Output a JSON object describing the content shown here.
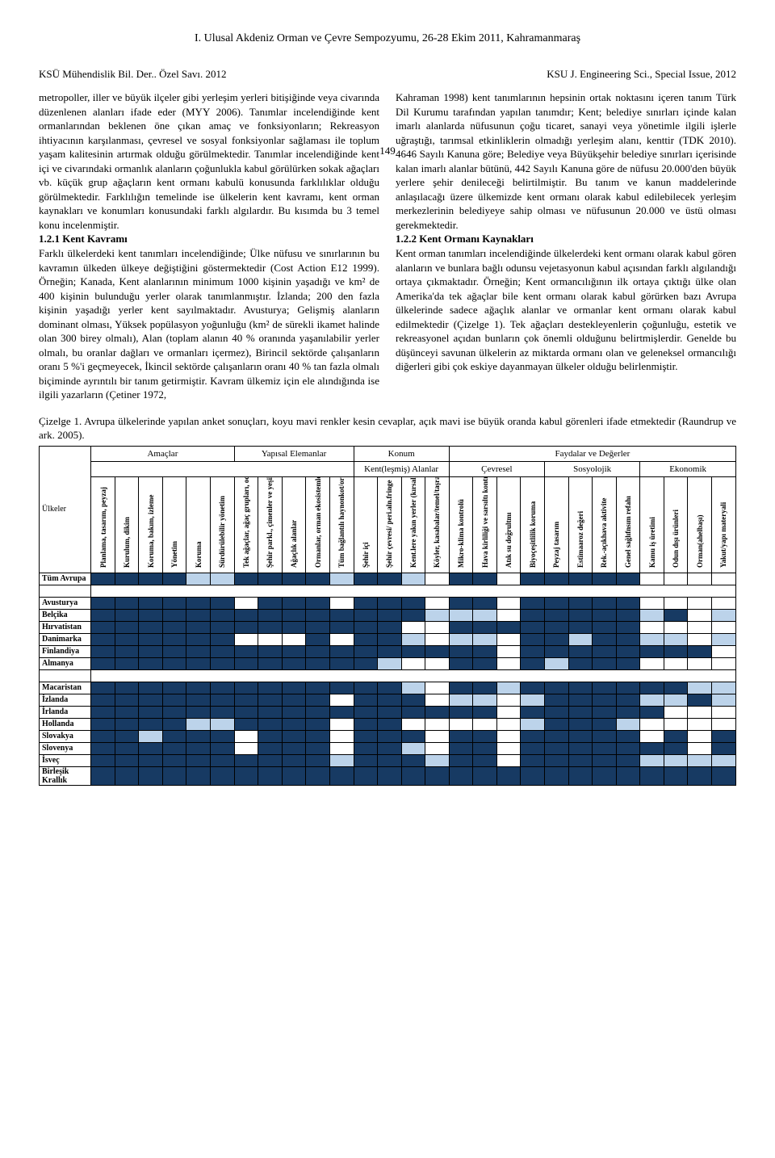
{
  "page_title": "I.  Ulusal Akdeniz Orman ve Çevre Sempozyumu, 26-28 Ekim 2011, Kahramanmaraş",
  "header": {
    "left": "KSÜ Mühendislik Bil. Der.. Özel Savı. 2012",
    "page_number": "149",
    "right": "KSU J. Engineering Sci., Special Issue, 2012"
  },
  "body": {
    "col1_p1": "metropoller, iller ve büyük ilçeler gibi yerleşim yerleri bitişiğinde veya civarında düzenlenen alanları ifade eder (MYY 2006). Tanımlar incelendiğinde kent ormanlarından beklenen öne çıkan amaç ve fonksiyonların; Rekreasyon ihtiyacının karşılanması, çevresel ve sosyal fonksiyonlar sağlaması ile toplum yaşam kalitesinin artırmak olduğu görülmektedir. Tanımlar incelendiğinde kent içi ve civarındaki ormanlık alanların çoğunlukla kabul görülürken sokak ağaçları vb. küçük grup ağaçların kent ormanı kabulü konusunda farklılıklar olduğu görülmektedir. Farklılığın temelinde ise ülkelerin kent kavramı, kent orman kaynakları ve konumları konusundaki farklı algılardır. Bu kısımda bu 3 temel konu incelenmiştir.",
    "sec1_head": "1.2.1 Kent Kavramı",
    "col1_p2": "Farklı ülkelerdeki kent tanımları incelendiğinde; Ülke nüfusu ve sınırlarının bu kavramın ülkeden ülkeye değiştiğini göstermektedir (Cost Action E12 1999). Örneğin; Kanada, Kent alanlarının minimum 1000 kişinin yaşadığı ve km² de 400 kişinin bulunduğu yerler olarak tanımlanmıştır. İzlanda; 200 den fazla kişinin yaşadığı yerler kent sayılmaktadır. Avusturya; Gelişmiş alanların dominant olması, Yüksek popülasyon yoğunluğu (km² de sürekli ikamet halinde olan 300 birey olmalı), Alan (toplam alanın 40 % oranında yaşanılabilir yerler olmalı, bu oranlar dağları ve ormanları içermez), Birincil sektörde çalışanların oranı 5 %'i geçmeyecek, İkincil sektörde çalışanların oranı 40 % tan fazla olmalı biçiminde ayrıntılı bir tanım getirmiştir. Kavram ülkemiz için ele alındığında ise ilgili yazarların (Çetiner 1972,",
    "col2_p1": "Kahraman 1998) kent tanımlarının hepsinin ortak noktasını içeren tanım Türk Dil Kurumu tarafından yapılan tanımdır; Kent; belediye sınırları içinde kalan imarlı alanlarda nüfusunun çoğu ticaret, sanayi veya yönetimle ilgili işlerle uğraştığı, tarımsal etkinliklerin olmadığı yerleşim alanı, kenttir (TDK 2010). 4646 Sayılı Kanuna göre; Belediye veya Büyükşehir belediye sınırları içerisinde kalan imarlı alanlar bütünü, 442 Sayılı Kanuna göre de nüfusu 20.000'den büyük yerlere şehir denileceği belirtilmiştir. Bu tanım ve kanun maddelerinde anlaşılacağı üzere ülkemizde kent ormanı olarak kabul edilebilecek yerleşim merkezlerinin belediyeye sahip olması ve nüfusunun 20.000 ve üstü olması gerekmektedir.",
    "sec2_head": "1.2.2 Kent Ormanı Kaynakları",
    "col2_p2": "Kent orman tanımları incelendiğinde ülkelerdeki kent ormanı olarak kabul gören alanların ve bunlara bağlı odunsu vejetasyonun kabul açısından farklı algılandığı ortaya çıkmaktadır. Örneğin; Kent ormancılığının ilk ortaya çıktığı ülke olan Amerika'da tek ağaçlar bile kent ormanı olarak kabul görürken bazı Avrupa ülkelerinde sadece ağaçlık alanlar ve ormanlar kent ormanı olarak kabul edilmektedir (Çizelge 1). Tek ağaçları destekleyenlerin çoğunluğu, estetik ve rekreasyonel açıdan bunların çok önemli olduğunu belirtmişlerdir. Genelde bu düşünceyi savunan ülkelerin az miktarda ormanı olan ve geleneksel ormancılığı diğerleri gibi çok eskiye dayanmayan ülkeler olduğu belirlenmiştir."
  },
  "table": {
    "caption": "Çizelge 1. Avrupa ülkelerinde yapılan anket sonuçları, koyu mavi renkler kesin cevaplar, açık mavi ise büyük oranda kabul görenleri ifade etmektedir (Raundrup ve ark. 2005).",
    "corner_label": "Ülkeler",
    "groups": [
      {
        "label": "Amaçlar",
        "span": 6
      },
      {
        "label": "Yapısal Elemanlar",
        "span": 5
      },
      {
        "label": "Konum",
        "span": 4
      },
      {
        "label": "Faydalar ve Değerler",
        "span": 12
      }
    ],
    "subgroups_row": [
      {
        "label": "",
        "span": 11
      },
      {
        "label": "Kent(leşmiş) Alanlar",
        "span": 4
      },
      {
        "label": "Çevresel",
        "span": 4
      },
      {
        "label": "Sosyolojik",
        "span": 4
      },
      {
        "label": "Ekonomik",
        "span": 4
      }
    ],
    "columns": [
      "Planlama, tasarım, peyzaj",
      "Kurulum, dikim",
      "Koruma, bakım, izleme",
      "Yönetim",
      "Koruma",
      "Sürdürülebilir yönetim",
      "Tek ağaçlar, ağaç grupları, odunluk",
      "Şehir parkl., çimenler ve yeşil mekanlar",
      "Ağaçlık alanlar",
      "Ormanlar, orman ekosistemleri",
      "Tüm bağlantılı haynonkot/ortanızal",
      "Şehir içi",
      "Şehir çevresi/ peri.aln.fringe",
      "Kent.lere yakın yerler (kırsal)",
      "Köyler, kasabalar/temel/taşralı",
      "Mikro-klima kontrolü",
      "Hava kirliliği ve sarsıltı kontrolü",
      "Atık su doğrultmı",
      "Biyoçeşitlilik koruma",
      "Peyzaj tasarım",
      "Estîmaaroz değeri",
      "Rek.-açıkhava aktivite",
      "Genel sağlıfnsım refahı",
      "Kamu iş üretimi",
      "Odun dışı ürünleri",
      "Orman(ahelbaşı)",
      "Yakut/yapı materyali"
    ],
    "colors": {
      "dark": "#173a63",
      "light": "#bcd3ea",
      "blank": "#ffffff"
    },
    "rows": [
      {
        "name": "Tüm Avrupa",
        "cells": [
          "d",
          "d",
          "d",
          "d",
          "l",
          "l",
          "d",
          "d",
          "d",
          "d",
          "l",
          "d",
          "d",
          "l",
          "b",
          "d",
          "d",
          "b",
          "d",
          "d",
          "d",
          "d",
          "d",
          "b",
          "b",
          "b",
          "b"
        ]
      },
      {
        "name": "",
        "cells": null
      },
      {
        "name": "Avusturya",
        "cells": [
          "d",
          "d",
          "d",
          "d",
          "d",
          "d",
          "b",
          "d",
          "d",
          "d",
          "b",
          "d",
          "d",
          "d",
          "b",
          "d",
          "d",
          "b",
          "d",
          "d",
          "d",
          "d",
          "d",
          "b",
          "b",
          "b",
          "b"
        ]
      },
      {
        "name": "Belçika",
        "cells": [
          "d",
          "d",
          "d",
          "d",
          "d",
          "d",
          "d",
          "d",
          "d",
          "d",
          "d",
          "d",
          "d",
          "d",
          "l",
          "l",
          "l",
          "b",
          "d",
          "d",
          "d",
          "d",
          "d",
          "l",
          "d",
          "b",
          "l"
        ]
      },
      {
        "name": "Hırvatistan",
        "cells": [
          "d",
          "d",
          "d",
          "d",
          "d",
          "d",
          "d",
          "d",
          "d",
          "d",
          "d",
          "d",
          "d",
          "b",
          "b",
          "d",
          "d",
          "d",
          "d",
          "d",
          "d",
          "d",
          "d",
          "b",
          "b",
          "b",
          "b"
        ]
      },
      {
        "name": "Danimarka",
        "cells": [
          "d",
          "d",
          "d",
          "d",
          "d",
          "d",
          "b",
          "b",
          "b",
          "d",
          "b",
          "d",
          "d",
          "l",
          "b",
          "l",
          "l",
          "b",
          "d",
          "d",
          "l",
          "d",
          "d",
          "l",
          "l",
          "b",
          "l"
        ]
      },
      {
        "name": "Finlandiya",
        "cells": [
          "d",
          "d",
          "d",
          "d",
          "d",
          "d",
          "d",
          "d",
          "d",
          "d",
          "d",
          "d",
          "d",
          "d",
          "d",
          "d",
          "d",
          "b",
          "d",
          "d",
          "d",
          "d",
          "d",
          "d",
          "d",
          "d",
          "b"
        ]
      },
      {
        "name": "Almanya",
        "cells": [
          "d",
          "d",
          "d",
          "d",
          "d",
          "d",
          "d",
          "d",
          "d",
          "d",
          "d",
          "d",
          "l",
          "b",
          "b",
          "d",
          "d",
          "b",
          "d",
          "l",
          "d",
          "d",
          "d",
          "b",
          "b",
          "b",
          "b"
        ]
      },
      {
        "name": "",
        "cells": null
      },
      {
        "name": "Macaristan",
        "cells": [
          "d",
          "d",
          "d",
          "d",
          "d",
          "d",
          "d",
          "d",
          "d",
          "d",
          "d",
          "d",
          "d",
          "l",
          "b",
          "d",
          "d",
          "l",
          "d",
          "d",
          "d",
          "d",
          "d",
          "d",
          "d",
          "l",
          "l"
        ]
      },
      {
        "name": "İzlanda",
        "cells": [
          "d",
          "d",
          "d",
          "d",
          "d",
          "d",
          "d",
          "d",
          "d",
          "d",
          "b",
          "d",
          "d",
          "d",
          "b",
          "l",
          "l",
          "b",
          "l",
          "d",
          "d",
          "d",
          "d",
          "l",
          "l",
          "d",
          "l"
        ]
      },
      {
        "name": "İrlanda",
        "cells": [
          "d",
          "d",
          "d",
          "d",
          "d",
          "d",
          "d",
          "d",
          "d",
          "d",
          "d",
          "d",
          "d",
          "d",
          "d",
          "d",
          "d",
          "b",
          "d",
          "d",
          "d",
          "d",
          "d",
          "d",
          "b",
          "b",
          "b"
        ]
      },
      {
        "name": "Hollanda",
        "cells": [
          "d",
          "d",
          "d",
          "d",
          "l",
          "l",
          "d",
          "d",
          "d",
          "d",
          "b",
          "d",
          "d",
          "b",
          "b",
          "b",
          "b",
          "b",
          "l",
          "d",
          "d",
          "d",
          "l",
          "b",
          "b",
          "b",
          "b"
        ]
      },
      {
        "name": "Slovakya",
        "cells": [
          "d",
          "d",
          "l",
          "d",
          "d",
          "d",
          "b",
          "d",
          "d",
          "d",
          "b",
          "d",
          "d",
          "d",
          "b",
          "d",
          "d",
          "b",
          "d",
          "d",
          "d",
          "d",
          "d",
          "b",
          "d",
          "b",
          "d"
        ]
      },
      {
        "name": "Slovenya",
        "cells": [
          "d",
          "d",
          "d",
          "d",
          "d",
          "d",
          "b",
          "d",
          "d",
          "d",
          "b",
          "d",
          "d",
          "l",
          "b",
          "d",
          "d",
          "b",
          "d",
          "d",
          "d",
          "d",
          "d",
          "d",
          "d",
          "b",
          "d"
        ]
      },
      {
        "name": "İsveç",
        "cells": [
          "d",
          "d",
          "d",
          "d",
          "d",
          "d",
          "d",
          "d",
          "d",
          "d",
          "l",
          "d",
          "d",
          "d",
          "l",
          "d",
          "d",
          "b",
          "d",
          "d",
          "d",
          "d",
          "d",
          "l",
          "l",
          "l",
          "l"
        ]
      },
      {
        "name": "Birleşik Krallık",
        "cells": [
          "d",
          "d",
          "d",
          "d",
          "d",
          "d",
          "d",
          "d",
          "d",
          "d",
          "d",
          "d",
          "d",
          "d",
          "d",
          "d",
          "d",
          "d",
          "d",
          "d",
          "d",
          "d",
          "d",
          "d",
          "d",
          "d",
          "d"
        ]
      }
    ]
  }
}
